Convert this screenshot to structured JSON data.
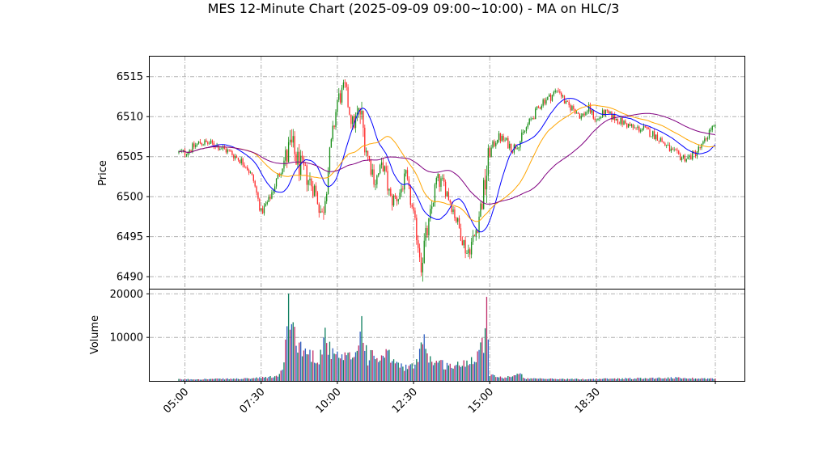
{
  "chart_data": {
    "type": "candlestick",
    "title": "MES 12-Minute Chart (2025-09-09 09:00~10:00) - MA on HLC/3",
    "price_panel": {
      "ylabel": "Price",
      "ylim": [
        6488.5,
        6517.5
      ],
      "yticks": [
        "6490",
        "6495",
        "6500",
        "6505",
        "6510",
        "6515"
      ],
      "grid": true
    },
    "volume_panel": {
      "ylabel": "Volume",
      "ylim": [
        0,
        21000
      ],
      "yticks": [
        "10000",
        "20000"
      ],
      "grid": true
    },
    "x_axis": {
      "start": "04:48",
      "end": "22:24",
      "bar_minutes": 12,
      "tick_labels": [
        "05:00",
        "07:30",
        "10:00",
        "12:30",
        "15:00",
        "18:30"
      ]
    },
    "price_path": [
      [
        "05:00",
        6505.5
      ],
      [
        "05:30",
        6506.8
      ],
      [
        "06:00",
        6506.5
      ],
      [
        "06:30",
        6505.5
      ],
      [
        "07:00",
        6504.0
      ],
      [
        "07:15",
        6502.0
      ],
      [
        "07:30",
        6498.0
      ],
      [
        "07:45",
        6499.5
      ],
      [
        "08:00",
        6502.0
      ],
      [
        "08:15",
        6504.5
      ],
      [
        "08:30",
        6506.0
      ],
      [
        "08:45",
        6504.0
      ],
      [
        "09:00",
        6502.5
      ],
      [
        "09:15",
        6501.0
      ],
      [
        "09:30",
        6497.5
      ],
      [
        "09:45",
        6505.0
      ],
      [
        "10:00",
        6512.0
      ],
      [
        "10:15",
        6513.5
      ],
      [
        "10:30",
        6509.0
      ],
      [
        "10:45",
        6510.5
      ],
      [
        "11:00",
        6505.0
      ],
      [
        "11:15",
        6502.0
      ],
      [
        "11:30",
        6504.0
      ],
      [
        "11:45",
        6499.5
      ],
      [
        "12:00",
        6500.0
      ],
      [
        "12:15",
        6502.5
      ],
      [
        "12:30",
        6497.5
      ],
      [
        "12:45",
        6492.0
      ],
      [
        "13:00",
        6496.5
      ],
      [
        "13:15",
        6502.0
      ],
      [
        "13:30",
        6501.5
      ],
      [
        "13:45",
        6499.0
      ],
      [
        "14:00",
        6496.0
      ],
      [
        "14:15",
        6493.0
      ],
      [
        "14:30",
        6495.0
      ],
      [
        "14:45",
        6499.5
      ],
      [
        "15:00",
        6505.5
      ],
      [
        "15:15",
        6507.5
      ],
      [
        "15:30",
        6507.0
      ],
      [
        "15:45",
        6506.0
      ],
      [
        "16:00",
        6507.0
      ],
      [
        "16:15",
        6509.0
      ],
      [
        "16:30",
        6510.5
      ],
      [
        "16:45",
        6512.0
      ],
      [
        "17:00",
        6512.5
      ],
      [
        "17:15",
        6513.5
      ],
      [
        "17:30",
        6511.5
      ],
      [
        "17:45",
        6511.0
      ],
      [
        "18:00",
        6510.0
      ],
      [
        "18:15",
        6511.0
      ],
      [
        "18:30",
        6509.5
      ],
      [
        "18:45",
        6510.5
      ],
      [
        "19:00",
        6510.0
      ],
      [
        "19:15",
        6509.5
      ],
      [
        "19:30",
        6509.0
      ],
      [
        "19:45",
        6508.5
      ],
      [
        "20:00",
        6508.5
      ],
      [
        "20:15",
        6508.0
      ],
      [
        "20:30",
        6507.5
      ],
      [
        "20:45",
        6506.5
      ],
      [
        "21:00",
        6505.5
      ],
      [
        "21:15",
        6505.0
      ],
      [
        "21:30",
        6504.8
      ],
      [
        "21:45",
        6505.5
      ],
      [
        "22:00",
        6506.5
      ],
      [
        "22:15",
        6508.5
      ]
    ],
    "volume_profile": [
      [
        "04:48",
        350
      ],
      [
        "07:00",
        500
      ],
      [
        "07:30",
        700
      ],
      [
        "08:00",
        1000
      ],
      [
        "08:12",
        2200
      ],
      [
        "08:24",
        15500
      ],
      [
        "08:36",
        11000
      ],
      [
        "08:48",
        7500
      ],
      [
        "09:00",
        6500
      ],
      [
        "09:24",
        5000
      ],
      [
        "09:36",
        10500
      ],
      [
        "09:48",
        6000
      ],
      [
        "10:00",
        5500
      ],
      [
        "10:12",
        5000
      ],
      [
        "10:24",
        5500
      ],
      [
        "10:36",
        6000
      ],
      [
        "10:48",
        13000
      ],
      [
        "11:00",
        5000
      ],
      [
        "11:12",
        6000
      ],
      [
        "11:24",
        4500
      ],
      [
        "11:36",
        6000
      ],
      [
        "11:48",
        5000
      ],
      [
        "12:00",
        3500
      ],
      [
        "12:24",
        3000
      ],
      [
        "12:36",
        4000
      ],
      [
        "12:48",
        11500
      ],
      [
        "13:00",
        5000
      ],
      [
        "13:24",
        4000
      ],
      [
        "13:36",
        3500
      ],
      [
        "14:00",
        3500
      ],
      [
        "14:24",
        5000
      ],
      [
        "14:36",
        6500
      ],
      [
        "14:48",
        9000
      ],
      [
        "14:54",
        20500
      ],
      [
        "15:00",
        1500
      ],
      [
        "15:24",
        700
      ],
      [
        "16:00",
        1500
      ],
      [
        "16:12",
        500
      ],
      [
        "18:00",
        400
      ],
      [
        "20:00",
        600
      ],
      [
        "21:00",
        700
      ],
      [
        "22:24",
        500
      ]
    ],
    "moving_averages": [
      {
        "color": "#0000ff",
        "window": 5
      },
      {
        "color": "#ffa500",
        "window": 10
      },
      {
        "color": "#800080",
        "window": 20
      }
    ],
    "colors": {
      "up": "#1a8f1a",
      "down": "#ff2a2a",
      "volume_up": "#108060",
      "volume_down": "#c0306a",
      "volume_alt": "#3060c0",
      "grid": "#b0b0b0"
    }
  }
}
